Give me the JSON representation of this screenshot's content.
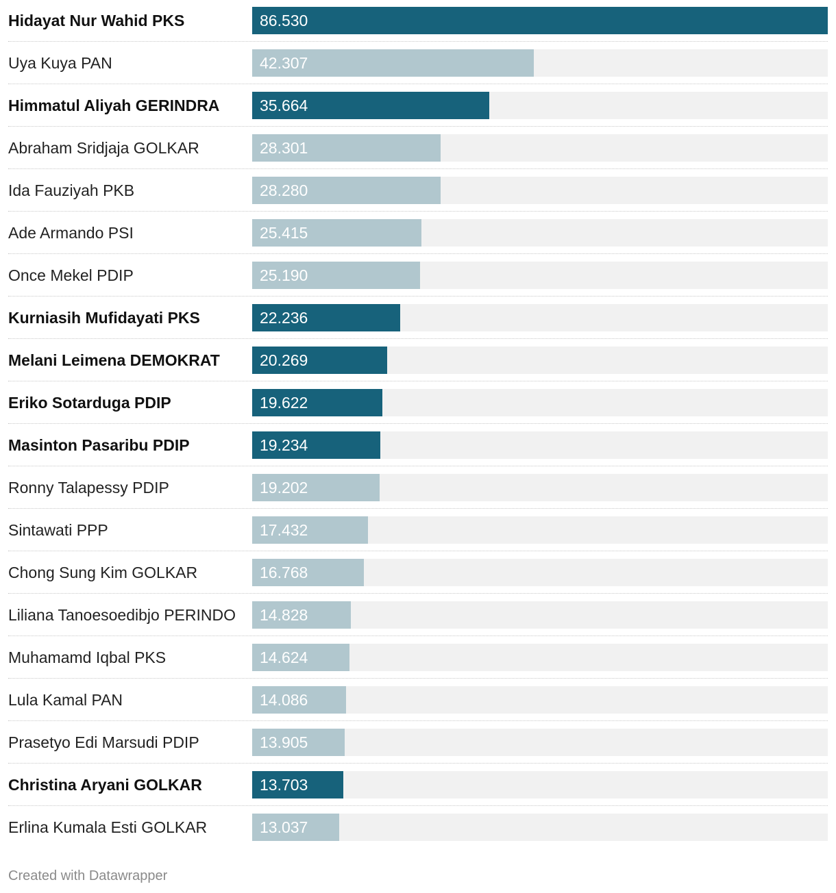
{
  "chart_data": {
    "type": "bar",
    "orientation": "horizontal",
    "xlim": [
      0,
      86.53
    ],
    "colors": {
      "highlight": "#17627b",
      "normal": "#b1c7ce",
      "track": "#f1f1f1"
    },
    "rows": [
      {
        "label": "Hidayat Nur Wahid PKS",
        "value": 86.53,
        "value_label": "86.530",
        "highlight": true
      },
      {
        "label": "Uya Kuya PAN",
        "value": 42.307,
        "value_label": "42.307",
        "highlight": false
      },
      {
        "label": "Himmatul Aliyah GERINDRA",
        "value": 35.664,
        "value_label": "35.664",
        "highlight": true
      },
      {
        "label": "Abraham Sridjaja GOLKAR",
        "value": 28.301,
        "value_label": "28.301",
        "highlight": false
      },
      {
        "label": "Ida Fauziyah PKB",
        "value": 28.28,
        "value_label": "28.280",
        "highlight": false
      },
      {
        "label": "Ade Armando PSI",
        "value": 25.415,
        "value_label": "25.415",
        "highlight": false
      },
      {
        "label": "Once Mekel PDIP",
        "value": 25.19,
        "value_label": "25.190",
        "highlight": false
      },
      {
        "label": "Kurniasih Mufidayati PKS",
        "value": 22.236,
        "value_label": "22.236",
        "highlight": true
      },
      {
        "label": "Melani Leimena DEMOKRAT",
        "value": 20.269,
        "value_label": "20.269",
        "highlight": true
      },
      {
        "label": "Eriko Sotarduga PDIP",
        "value": 19.622,
        "value_label": "19.622",
        "highlight": true
      },
      {
        "label": "Masinton Pasaribu PDIP",
        "value": 19.234,
        "value_label": "19.234",
        "highlight": true
      },
      {
        "label": "Ronny Talapessy PDIP",
        "value": 19.202,
        "value_label": "19.202",
        "highlight": false
      },
      {
        "label": "Sintawati PPP",
        "value": 17.432,
        "value_label": "17.432",
        "highlight": false
      },
      {
        "label": "Chong Sung Kim GOLKAR",
        "value": 16.768,
        "value_label": "16.768",
        "highlight": false
      },
      {
        "label": "Liliana Tanoesoedibjo PERINDO",
        "value": 14.828,
        "value_label": "14.828",
        "highlight": false
      },
      {
        "label": "Muhamamd Iqbal PKS",
        "value": 14.624,
        "value_label": "14.624",
        "highlight": false
      },
      {
        "label": "Lula Kamal PAN",
        "value": 14.086,
        "value_label": "14.086",
        "highlight": false
      },
      {
        "label": "Prasetyo Edi Marsudi PDIP",
        "value": 13.905,
        "value_label": "13.905",
        "highlight": false
      },
      {
        "label": "Christina Aryani GOLKAR",
        "value": 13.703,
        "value_label": "13.703",
        "highlight": true
      },
      {
        "label": "Erlina Kumala Esti GOLKAR",
        "value": 13.037,
        "value_label": "13.037",
        "highlight": false
      }
    ]
  },
  "footer": {
    "credit": "Created with Datawrapper"
  }
}
